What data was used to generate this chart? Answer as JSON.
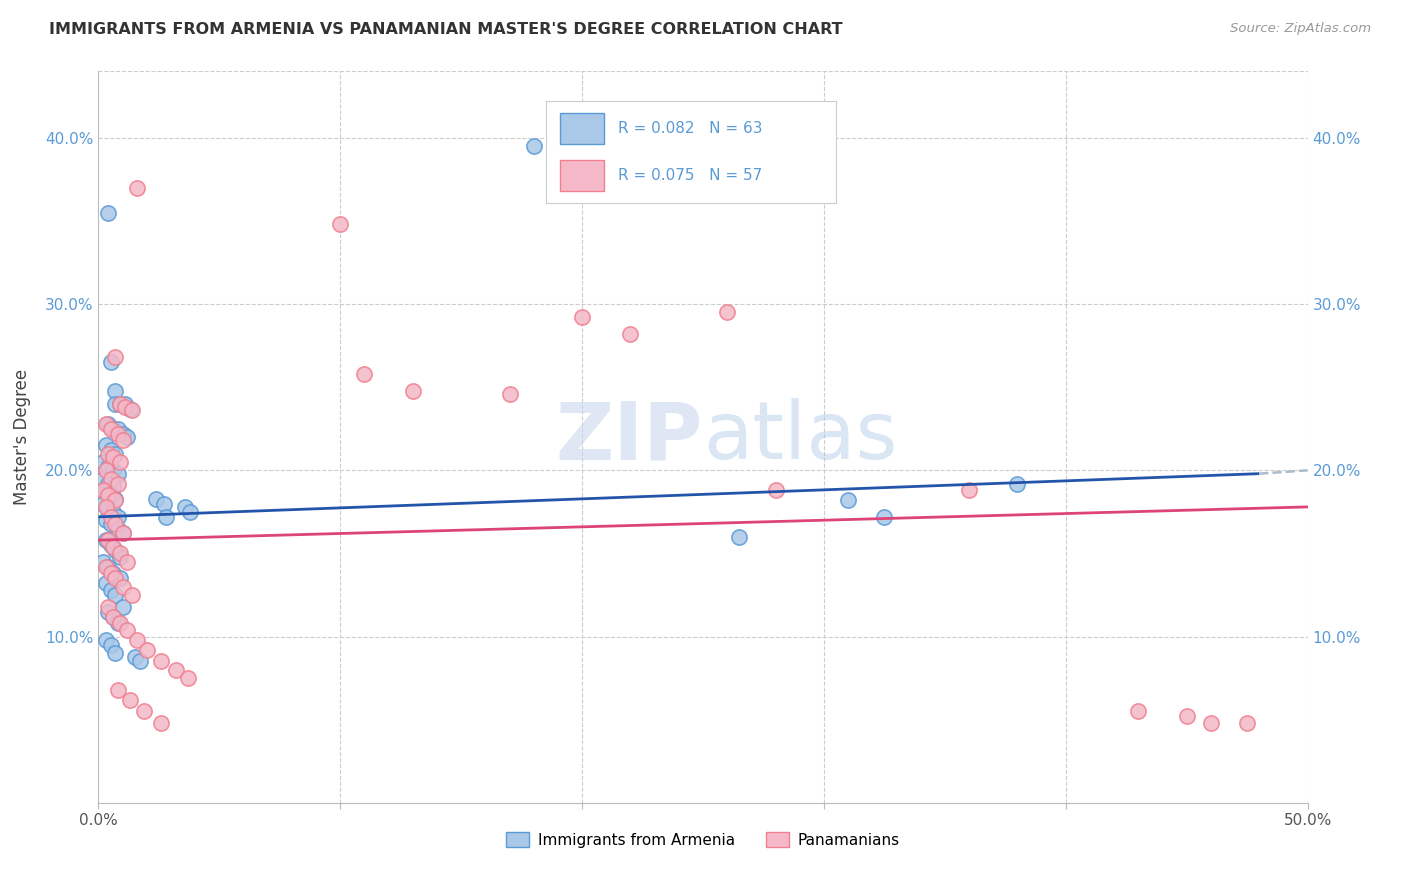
{
  "title": "IMMIGRANTS FROM ARMENIA VS PANAMANIAN MASTER'S DEGREE CORRELATION CHART",
  "source": "Source: ZipAtlas.com",
  "ylabel": "Master's Degree",
  "xlim": [
    0.0,
    0.5
  ],
  "ylim": [
    0.0,
    0.44
  ],
  "bottom_legend": [
    "Immigrants from Armenia",
    "Panamanians"
  ],
  "watermark_zip": "ZIP",
  "watermark_atlas": "atlas",
  "blue_color": "#5b9bd5",
  "pink_color": "#f08090",
  "blue_scatter_face": "#aac8e8",
  "pink_scatter_face": "#f4b8c8",
  "blue_line_color": "#2255aa",
  "pink_line_color": "#dd4477",
  "dashed_line_color": "#aabbcc",
  "blue_points": [
    [
      0.004,
      0.355
    ],
    [
      0.005,
      0.265
    ],
    [
      0.007,
      0.248
    ],
    [
      0.007,
      0.24
    ],
    [
      0.009,
      0.24
    ],
    [
      0.011,
      0.24
    ],
    [
      0.013,
      0.237
    ],
    [
      0.004,
      0.228
    ],
    [
      0.006,
      0.225
    ],
    [
      0.008,
      0.225
    ],
    [
      0.01,
      0.222
    ],
    [
      0.012,
      0.22
    ],
    [
      0.003,
      0.215
    ],
    [
      0.005,
      0.212
    ],
    [
      0.007,
      0.21
    ],
    [
      0.002,
      0.205
    ],
    [
      0.004,
      0.202
    ],
    [
      0.006,
      0.2
    ],
    [
      0.008,
      0.198
    ],
    [
      0.002,
      0.195
    ],
    [
      0.004,
      0.192
    ],
    [
      0.006,
      0.19
    ],
    [
      0.003,
      0.188
    ],
    [
      0.005,
      0.185
    ],
    [
      0.007,
      0.183
    ],
    [
      0.002,
      0.18
    ],
    [
      0.004,
      0.178
    ],
    [
      0.006,
      0.175
    ],
    [
      0.008,
      0.172
    ],
    [
      0.003,
      0.17
    ],
    [
      0.005,
      0.168
    ],
    [
      0.008,
      0.165
    ],
    [
      0.01,
      0.162
    ],
    [
      0.003,
      0.158
    ],
    [
      0.005,
      0.155
    ],
    [
      0.007,
      0.152
    ],
    [
      0.009,
      0.148
    ],
    [
      0.002,
      0.145
    ],
    [
      0.004,
      0.142
    ],
    [
      0.006,
      0.138
    ],
    [
      0.009,
      0.135
    ],
    [
      0.003,
      0.132
    ],
    [
      0.005,
      0.128
    ],
    [
      0.007,
      0.125
    ],
    [
      0.01,
      0.118
    ],
    [
      0.004,
      0.115
    ],
    [
      0.006,
      0.112
    ],
    [
      0.008,
      0.108
    ],
    [
      0.003,
      0.098
    ],
    [
      0.005,
      0.095
    ],
    [
      0.007,
      0.09
    ],
    [
      0.015,
      0.088
    ],
    [
      0.017,
      0.085
    ],
    [
      0.024,
      0.183
    ],
    [
      0.027,
      0.18
    ],
    [
      0.028,
      0.172
    ],
    [
      0.036,
      0.178
    ],
    [
      0.038,
      0.175
    ],
    [
      0.18,
      0.395
    ],
    [
      0.265,
      0.16
    ],
    [
      0.31,
      0.182
    ],
    [
      0.325,
      0.172
    ],
    [
      0.38,
      0.192
    ]
  ],
  "pink_points": [
    [
      0.016,
      0.37
    ],
    [
      0.007,
      0.268
    ],
    [
      0.009,
      0.24
    ],
    [
      0.011,
      0.238
    ],
    [
      0.014,
      0.236
    ],
    [
      0.003,
      0.228
    ],
    [
      0.005,
      0.225
    ],
    [
      0.008,
      0.222
    ],
    [
      0.01,
      0.218
    ],
    [
      0.004,
      0.21
    ],
    [
      0.006,
      0.208
    ],
    [
      0.009,
      0.205
    ],
    [
      0.003,
      0.2
    ],
    [
      0.005,
      0.195
    ],
    [
      0.008,
      0.192
    ],
    [
      0.002,
      0.188
    ],
    [
      0.004,
      0.185
    ],
    [
      0.007,
      0.182
    ],
    [
      0.003,
      0.178
    ],
    [
      0.005,
      0.172
    ],
    [
      0.007,
      0.168
    ],
    [
      0.01,
      0.162
    ],
    [
      0.004,
      0.158
    ],
    [
      0.006,
      0.154
    ],
    [
      0.009,
      0.15
    ],
    [
      0.012,
      0.145
    ],
    [
      0.003,
      0.142
    ],
    [
      0.005,
      0.138
    ],
    [
      0.007,
      0.135
    ],
    [
      0.01,
      0.13
    ],
    [
      0.014,
      0.125
    ],
    [
      0.004,
      0.118
    ],
    [
      0.006,
      0.112
    ],
    [
      0.009,
      0.108
    ],
    [
      0.012,
      0.104
    ],
    [
      0.016,
      0.098
    ],
    [
      0.02,
      0.092
    ],
    [
      0.026,
      0.085
    ],
    [
      0.032,
      0.08
    ],
    [
      0.037,
      0.075
    ],
    [
      0.008,
      0.068
    ],
    [
      0.013,
      0.062
    ],
    [
      0.019,
      0.055
    ],
    [
      0.026,
      0.048
    ],
    [
      0.1,
      0.348
    ],
    [
      0.11,
      0.258
    ],
    [
      0.13,
      0.248
    ],
    [
      0.17,
      0.246
    ],
    [
      0.2,
      0.292
    ],
    [
      0.22,
      0.282
    ],
    [
      0.26,
      0.295
    ],
    [
      0.28,
      0.188
    ],
    [
      0.36,
      0.188
    ],
    [
      0.43,
      0.055
    ],
    [
      0.45,
      0.052
    ],
    [
      0.46,
      0.048
    ],
    [
      0.475,
      0.048
    ]
  ],
  "blue_line": {
    "x0": 0.0,
    "y0": 0.172,
    "x1": 0.48,
    "y1": 0.198
  },
  "dashed_line": {
    "x0": 0.48,
    "y0": 0.198,
    "x1": 0.5,
    "y1": 0.2
  },
  "pink_line": {
    "x0": 0.0,
    "y0": 0.158,
    "x1": 0.5,
    "y1": 0.178
  }
}
